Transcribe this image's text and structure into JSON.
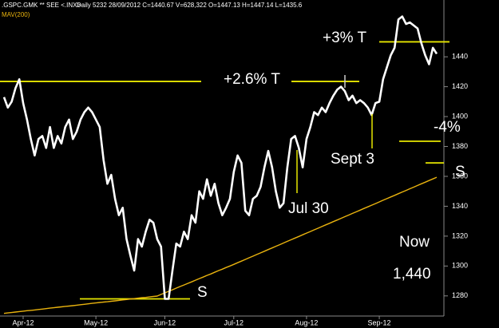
{
  "chart_data": {
    "type": "line",
    "title": ".GSPC.GMK ** SEE <.INX>",
    "subtitle": "Daily 5232 28/09/2012 C=1440.67 V=628,322 O=1447.13 H=1447.14 L=1435.6",
    "categories": [
      null,
      null,
      null,
      null,
      null,
      "Apr-12",
      null,
      null,
      null,
      null,
      null,
      null,
      null,
      null,
      null,
      null,
      null,
      null,
      null,
      null,
      null,
      null,
      null,
      null,
      "May-12",
      null,
      null,
      null,
      null,
      null,
      null,
      null,
      null,
      null,
      null,
      null,
      null,
      null,
      null,
      null,
      null,
      null,
      "Jun-12",
      null,
      null,
      null,
      null,
      null,
      null,
      null,
      null,
      null,
      null,
      null,
      null,
      null,
      null,
      null,
      null,
      null,
      "Jul-12",
      null,
      null,
      null,
      null,
      null,
      null,
      null,
      null,
      null,
      null,
      null,
      null,
      null,
      null,
      null,
      null,
      null,
      null,
      "Aug-12",
      null,
      null,
      null,
      null,
      null,
      null,
      null,
      null,
      null,
      null,
      null,
      null,
      null,
      null,
      null,
      null,
      null,
      null,
      "Sep-12",
      null,
      null,
      null,
      null,
      null,
      null,
      null,
      null,
      null,
      null,
      null,
      null,
      null,
      null,
      null
    ],
    "series": [
      {
        "color": "#ffffff",
        "values": [
          1413,
          1406,
          1410,
          1419,
          1425,
          1409,
          1398,
          1385,
          1374,
          1385,
          1387,
          1379,
          1393,
          1379,
          1387,
          1382,
          1393,
          1398,
          1385,
          1390,
          1398,
          1403,
          1406,
          1403,
          1398,
          1393,
          1371,
          1355,
          1361,
          1345,
          1334,
          1339,
          1318,
          1307,
          1297,
          1318,
          1313,
          1323,
          1331,
          1329,
          1318,
          1313,
          1278,
          1278,
          1297,
          1315,
          1313,
          1323,
          1318,
          1334,
          1329,
          1350,
          1345,
          1358,
          1347,
          1355,
          1342,
          1334,
          1339,
          1345,
          1363,
          1374,
          1369,
          1337,
          1334,
          1345,
          1347,
          1353,
          1366,
          1377,
          1366,
          1350,
          1339,
          1342,
          1366,
          1385,
          1387,
          1379,
          1366,
          1385,
          1393,
          1403,
          1401,
          1406,
          1403,
          1409,
          1414,
          1418,
          1420,
          1417,
          1411,
          1414,
          1409,
          1411,
          1409,
          1406,
          1401,
          1409,
          1410,
          1425,
          1433,
          1441,
          1446,
          1465,
          1467,
          1462,
          1463,
          1461,
          1459,
          1449,
          1441,
          1435,
          1446,
          1442
        ]
      },
      {
        "name": "MAV(200)",
        "color": "#e8b20e",
        "values": [
          1268.3,
          1268.6,
          1268.9,
          1269.2,
          1269.5,
          1269.8,
          1270.1,
          1270.3,
          1270.6,
          1270.9,
          1271.2,
          1271.5,
          1271.8,
          1272.1,
          1272.4,
          1272.7,
          1273.0,
          1273.2,
          1273.5,
          1273.8,
          1274.1,
          1274.4,
          1274.7,
          1275.0,
          1275.3,
          1275.6,
          1275.9,
          1276.1,
          1276.4,
          1276.7,
          1277.0,
          1277.3,
          1277.6,
          1277.9,
          1278.2,
          1278.5,
          1278.8,
          1279.0,
          1279.3,
          1279.6,
          1279.9,
          1281.0,
          1282.0,
          1283.1,
          1284.1,
          1285.2,
          1286.3,
          1287.3,
          1288.4,
          1289.4,
          1290.5,
          1291.6,
          1292.6,
          1293.7,
          1294.7,
          1295.8,
          1296.9,
          1297.9,
          1299.0,
          1300.0,
          1301.1,
          1302.2,
          1303.3,
          1304.4,
          1305.5,
          1306.6,
          1307.7,
          1308.8,
          1309.9,
          1311.0,
          1312.1,
          1313.2,
          1314.3,
          1315.4,
          1316.5,
          1317.6,
          1318.7,
          1319.8,
          1320.9,
          1322.0,
          1323.1,
          1324.2,
          1325.3,
          1326.4,
          1327.5,
          1328.6,
          1329.7,
          1330.8,
          1331.9,
          1333.0,
          1334.1,
          1335.2,
          1336.3,
          1337.4,
          1338.5,
          1339.6,
          1340.7,
          1341.8,
          1342.9,
          1344.0,
          1345.1,
          1346.2,
          1347.3,
          1348.4,
          1349.5,
          1350.6,
          1351.7,
          1352.8,
          1353.9,
          1355.0,
          1356.1,
          1357.2,
          1358.3,
          1359.4
        ]
      }
    ],
    "ylim": [
      1266,
      1470
    ],
    "yticks": [
      1280,
      1300,
      1320,
      1340,
      1360,
      1380,
      1400,
      1420,
      1440
    ],
    "reference_lines": [
      {
        "y": 1423.5,
        "color": "#e6e600"
      },
      {
        "y": 1423.5,
        "color": "#e6e600"
      },
      {
        "y": 1450,
        "color": "#e6e600"
      },
      {
        "y": 1383.5,
        "color": "#e6e600"
      },
      {
        "y": 1369,
        "color": "#e6e600"
      },
      {
        "y": 1278,
        "color": "#e6e600"
      }
    ],
    "annotations": [
      "+3% T",
      "+2.6% T",
      "-4%",
      "S",
      "Sept 3",
      "Jul 30",
      "Now",
      "1,440",
      "S"
    ]
  }
}
